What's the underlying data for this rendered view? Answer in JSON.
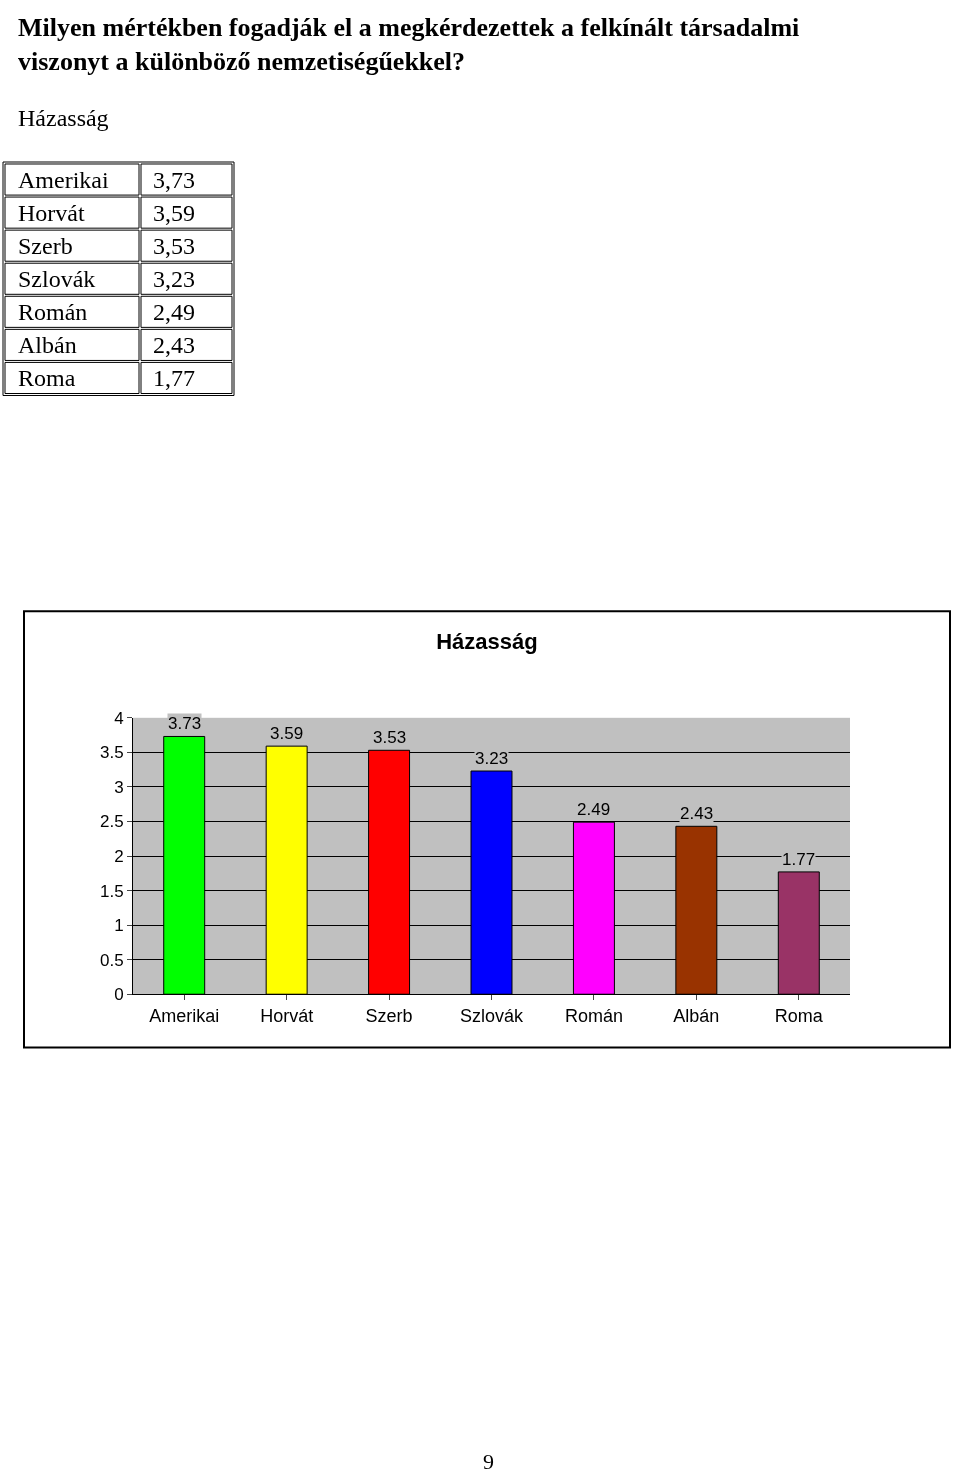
{
  "chart_data": [
    {
      "type": "other",
      "title": "Milyen mértékben fogadják el a megkérdezettek a felkínált társadalmi viszonyt a különböző nemzetiségűekkel?",
      "subtitle": "Házasság",
      "annotations": [
        "Amerikai",
        "3,73",
        "Horvát",
        "3,59",
        "Szerb",
        "3,53",
        "Szlovák",
        "3,23",
        "Román",
        "2,49",
        "Albán",
        "2,43",
        "Roma",
        "1,77"
      ]
    },
    {
      "type": "bar",
      "title": "Házasság",
      "annotations": [
        "9"
      ],
      "categories": [
        "Amerikai",
        "Horvát",
        "Szerb",
        "Szlovák",
        "Román",
        "Albán",
        "Roma"
      ],
      "values": [
        3.73,
        3.59,
        3.53,
        3.23,
        2.49,
        2.43,
        1.77
      ],
      "colors": [
        "#00ff00",
        "#ffff00",
        "#ff0000",
        "#0000ff",
        "#ff00ff",
        "#993300",
        "#993366"
      ],
      "ylim": [
        0,
        4
      ],
      "yticks": [
        0,
        0.5,
        1,
        1.5,
        2,
        2.5,
        3,
        3.5,
        4
      ],
      "data_labels": true,
      "grid": "y",
      "legend": false
    }
  ]
}
